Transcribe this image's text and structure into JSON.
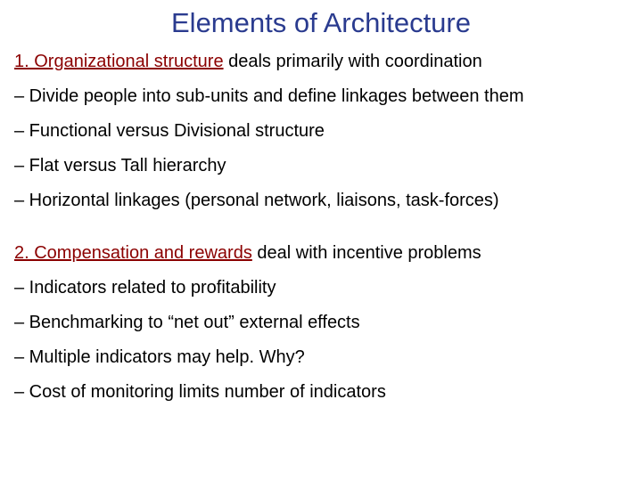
{
  "title": {
    "text": "Elements of Architecture",
    "color": "#2a3b8f"
  },
  "section1": {
    "label": "1. Organizational structure",
    "label_color": "#8b0000",
    "tail": " deals primarily with coordination",
    "bullets": [
      "– Divide people into sub-units and define linkages between them",
      "– Functional versus Divisional structure",
      "– Flat versus Tall hierarchy",
      "– Horizontal linkages (personal network, liaisons, task-forces)"
    ]
  },
  "section2": {
    "label": "2. Compensation and rewards",
    "label_color": "#8b0000",
    "tail": " deal with incentive problems",
    "bullets": [
      "– Indicators related to profitability",
      "– Benchmarking to “net out” external effects",
      "– Multiple indicators may help. Why?",
      "– Cost of monitoring limits number of indicators"
    ]
  }
}
